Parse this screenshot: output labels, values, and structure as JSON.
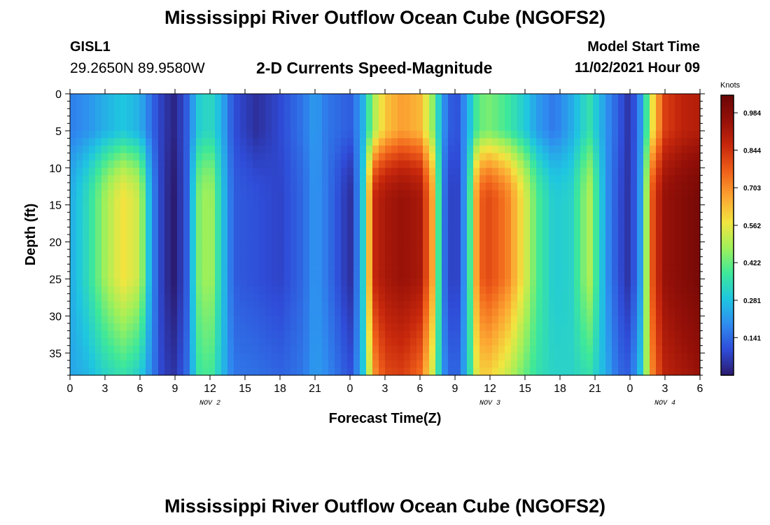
{
  "page": {
    "title_top": "Mississippi River Outflow Ocean Cube (NGOFS2)",
    "title_bottom": "Mississippi River Outflow Ocean Cube (NGOFS2)",
    "station_id": "GISL1",
    "station_coords": "29.2650N  89.9580W",
    "subtitle": "2-D Currents Speed-Magnitude",
    "model_start_label": "Model Start Time",
    "model_start_value": "11/02/2021 Hour 09"
  },
  "chart_data": {
    "type": "heatmap",
    "title": "2-D Currents Speed-Magnitude",
    "xlabel": "Forecast Time(Z)",
    "ylabel": "Depth (ft)",
    "x_ticks": [
      "0",
      "3",
      "6",
      "9",
      "12",
      "15",
      "18",
      "21",
      "0",
      "3",
      "6",
      "9",
      "12",
      "15",
      "18",
      "21",
      "0",
      "3",
      "6"
    ],
    "date_labels": [
      {
        "text": "NOV 2",
        "after_tick": 12
      },
      {
        "text": "NOV 3",
        "after_tick": 36
      },
      {
        "text": "NOV 4",
        "after_tick": 51
      }
    ],
    "xlim_hours": [
      0,
      54
    ],
    "y_ticks": [
      0,
      5,
      10,
      15,
      20,
      25,
      30,
      35
    ],
    "ylim": [
      0,
      38
    ],
    "y_inverted": true,
    "colorbar": {
      "unit": "Knots",
      "ticks": [
        0.141,
        0.281,
        0.422,
        0.562,
        0.703,
        0.844,
        0.984
      ],
      "range": [
        0,
        1.05
      ],
      "colors": [
        "#2b1a6e",
        "#2f4cd8",
        "#2f8cf0",
        "#1fc6e0",
        "#3ee89a",
        "#9ff05a",
        "#f2e540",
        "#fca532",
        "#f0601a",
        "#c8280c",
        "#951008",
        "#6a0606"
      ]
    },
    "columns": [
      {
        "hour": 0,
        "shallow": 0.17,
        "mid": 0.24,
        "deep": 0.23
      },
      {
        "hour": 1.5,
        "shallow": 0.2,
        "mid": 0.34,
        "deep": 0.26
      },
      {
        "hour": 3,
        "shallow": 0.25,
        "mid": 0.48,
        "deep": 0.32
      },
      {
        "hour": 4.5,
        "shallow": 0.29,
        "mid": 0.58,
        "deep": 0.36
      },
      {
        "hour": 6,
        "shallow": 0.25,
        "mid": 0.52,
        "deep": 0.31
      },
      {
        "hour": 7,
        "shallow": 0.14,
        "mid": 0.2,
        "deep": 0.18
      },
      {
        "hour": 8,
        "shallow": 0.06,
        "mid": 0.05,
        "deep": 0.07
      },
      {
        "hour": 9,
        "shallow": 0.02,
        "mid": 0.0,
        "deep": 0.05
      },
      {
        "hour": 10,
        "shallow": 0.12,
        "mid": 0.12,
        "deep": 0.14
      },
      {
        "hour": 11,
        "shallow": 0.3,
        "mid": 0.44,
        "deep": 0.37
      },
      {
        "hour": 12,
        "shallow": 0.34,
        "mid": 0.5,
        "deep": 0.4
      },
      {
        "hour": 13,
        "shallow": 0.25,
        "mid": 0.3,
        "deep": 0.28
      },
      {
        "hour": 14,
        "shallow": 0.1,
        "mid": 0.12,
        "deep": 0.16
      },
      {
        "hour": 16,
        "shallow": 0.04,
        "mid": 0.1,
        "deep": 0.15
      },
      {
        "hour": 18,
        "shallow": 0.09,
        "mid": 0.08,
        "deep": 0.13
      },
      {
        "hour": 20,
        "shallow": 0.16,
        "mid": 0.14,
        "deep": 0.16
      },
      {
        "hour": 21,
        "shallow": 0.22,
        "mid": 0.21,
        "deep": 0.22
      },
      {
        "hour": 22,
        "shallow": 0.16,
        "mid": 0.16,
        "deep": 0.19
      },
      {
        "hour": 24,
        "shallow": 0.12,
        "mid": 0.04,
        "deep": 0.1
      },
      {
        "hour": 25,
        "shallow": 0.22,
        "mid": 0.24,
        "deep": 0.24
      },
      {
        "hour": 26,
        "shallow": 0.48,
        "mid": 0.86,
        "deep": 0.68
      },
      {
        "hour": 27,
        "shallow": 0.62,
        "mid": 0.92,
        "deep": 0.8
      },
      {
        "hour": 28.5,
        "shallow": 0.68,
        "mid": 0.95,
        "deep": 0.82
      },
      {
        "hour": 30,
        "shallow": 0.64,
        "mid": 0.92,
        "deep": 0.75
      },
      {
        "hour": 31,
        "shallow": 0.48,
        "mid": 0.7,
        "deep": 0.55
      },
      {
        "hour": 32,
        "shallow": 0.2,
        "mid": 0.16,
        "deep": 0.2
      },
      {
        "hour": 33,
        "shallow": 0.08,
        "mid": 0.04,
        "deep": 0.1
      },
      {
        "hour": 34,
        "shallow": 0.22,
        "mid": 0.24,
        "deep": 0.26
      },
      {
        "hour": 35,
        "shallow": 0.42,
        "mid": 0.76,
        "deep": 0.6
      },
      {
        "hour": 36,
        "shallow": 0.44,
        "mid": 0.8,
        "deep": 0.6
      },
      {
        "hour": 37.5,
        "shallow": 0.38,
        "mid": 0.72,
        "deep": 0.52
      },
      {
        "hour": 39,
        "shallow": 0.3,
        "mid": 0.55,
        "deep": 0.42
      },
      {
        "hour": 40,
        "shallow": 0.22,
        "mid": 0.4,
        "deep": 0.36
      },
      {
        "hour": 41.5,
        "shallow": 0.16,
        "mid": 0.3,
        "deep": 0.32
      },
      {
        "hour": 43,
        "shallow": 0.24,
        "mid": 0.32,
        "deep": 0.32
      },
      {
        "hour": 44.5,
        "shallow": 0.36,
        "mid": 0.5,
        "deep": 0.36
      },
      {
        "hour": 46,
        "shallow": 0.2,
        "mid": 0.2,
        "deep": 0.24
      },
      {
        "hour": 47,
        "shallow": 0.12,
        "mid": 0.1,
        "deep": 0.14
      },
      {
        "hour": 48,
        "shallow": 0.04,
        "mid": 0.04,
        "deep": 0.12
      },
      {
        "hour": 49,
        "shallow": 0.22,
        "mid": 0.24,
        "deep": 0.3
      },
      {
        "hour": 50,
        "shallow": 0.6,
        "mid": 0.82,
        "deep": 0.74
      },
      {
        "hour": 51,
        "shallow": 0.82,
        "mid": 0.95,
        "deep": 0.88
      },
      {
        "hour": 52.5,
        "shallow": 0.88,
        "mid": 0.99,
        "deep": 0.92
      },
      {
        "hour": 54,
        "shallow": 0.9,
        "mid": 1.02,
        "deep": 0.95
      }
    ]
  }
}
